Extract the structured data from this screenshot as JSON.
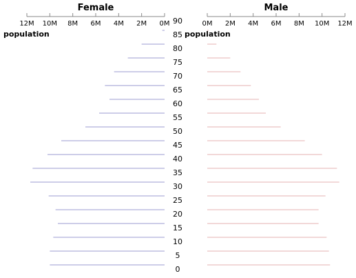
{
  "chart_data": {
    "type": "bar",
    "subtype": "population-pyramid",
    "categories": [
      "90",
      "85",
      "80",
      "75",
      "70",
      "65",
      "60",
      "55",
      "50",
      "45",
      "40",
      "35",
      "30",
      "25",
      "20",
      "15",
      "10",
      "5",
      "0"
    ],
    "series": [
      {
        "name": "Female",
        "color": "#9b9bd0",
        "values": [
          0.2,
          2.0,
          3.2,
          4.4,
          5.2,
          4.8,
          5.7,
          6.9,
          9.0,
          10.2,
          11.5,
          11.7,
          10.1,
          9.5,
          9.3,
          9.7,
          10.0,
          10.0,
          9.3
        ]
      },
      {
        "name": "Male",
        "color": "#e6b0b0",
        "values": [
          0.1,
          0.8,
          2.0,
          2.9,
          3.8,
          4.5,
          5.1,
          6.4,
          8.5,
          10.0,
          11.3,
          11.5,
          10.3,
          9.7,
          9.7,
          10.4,
          10.6,
          10.7,
          9.8
        ]
      }
    ],
    "female_title": "Female",
    "male_title": "Male",
    "ylabel": "population",
    "xlim": [
      0,
      12
    ],
    "x_ticks": [
      "0M",
      "2M",
      "4M",
      "6M",
      "8M",
      "10M",
      "12M"
    ],
    "female_x_ticks": [
      "12M",
      "10M",
      "8M",
      "6M",
      "4M",
      "2M",
      "0M"
    ],
    "grid": false
  }
}
